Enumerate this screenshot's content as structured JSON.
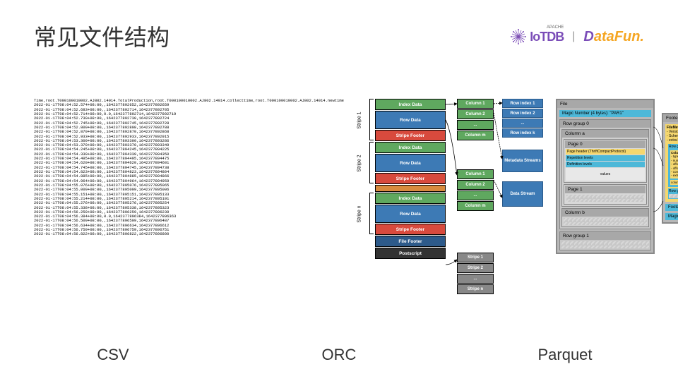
{
  "title": "常见文件结构",
  "logos": {
    "iotdb": "IoTDB",
    "apache": "APACHE",
    "datafun_d": "D",
    "datafun_rest": "ataFun.",
    "iotdb_color": "#7b4db8",
    "datafun_color": "#f5a623"
  },
  "labels": {
    "csv": "CSV",
    "orc": "ORC",
    "parquet": "Parquet"
  },
  "csv": {
    "header": "Time,root.T000100010002.AJ802.14014.TotalProduction,root.T000100010002.AJ802.14014.collecttime,root.T000100010002.AJ802.14014.newtime",
    "rows": [
      "2022-01-17T08:04:52.574+08:00,,1642377892652,1642377892659",
      "2022-01-17T08:04:52.683+08:00,,1642377892714,1642377892705",
      "2022-01-17T08:04:52.714+08:00,0.0,1642377892714,1642377892719",
      "2022-01-17T08:04:52.730+08:00,,1642377892730,1642377892724",
      "2022-01-17T08:04:52.745+08:00,,1642377892745,1642377892728",
      "2022-01-17T08:04:52.800+08:00,,1642377892808,1642377892788",
      "2022-01-17T08:04:52.870+08:00,,1642377892870,1642377892868",
      "2022-01-17T08:04:52.933+08:00,,1642377892933,1642377892915",
      "2022-01-17T08:04:53.300+08:00,,1642377893300,1642377893286",
      "2022-01-17T08:04:53.370+08:00,,1642377893370,1642377893349",
      "2022-01-17T08:04:54.245+08:00,,1642377894245,1642377894225",
      "2022-01-17T08:04:54.339+08:00,,1642377894339,1642377894350",
      "2022-01-17T08:04:54.495+08:00,,1642377894495,1642377894475",
      "2022-01-17T08:04:54.620+08:00,,1642377894620,1642377894601",
      "2022-01-17T08:04:54.745+08:00,,1642377894745,1642377894738",
      "2022-01-17T08:04:54.823+08:00,,1642377894823,1642377894804",
      "2022-01-17T08:04:54.885+08:00,,1642377894885,1642377894866",
      "2022-01-17T08:04:54.964+08:00,,1642377894964,1642377894959",
      "2022-01-17T08:04:55.076+08:00,,1642377895076,1642377895065",
      "2022-01-17T08:04:55.009+08:00,,1642377895009,1642377895006",
      "2022-01-17T08:04:55.151+08:00,,1642377895151,1642377895133",
      "2022-01-17T08:04:55.214+08:00,,1642377895214,1642377895191",
      "2022-01-17T08:04:55.276+08:00,,1642377895276,1642377895254",
      "2022-01-17T08:04:55.338+08:00,,1642377895338,1642377895323",
      "2022-01-17T08:04:56.259+08:00,,1642377896259,1642377896239",
      "2022-01-17T08:04:56.384+08:00,0.0,1642377896384,1642377896363",
      "2022-01-17T08:04:56.509+08:00,,1642377896509,1642377896487",
      "2022-01-17T08:04:56.634+08:00,,1642377896634,1642377896612",
      "2022-01-17T08:04:56.759+08:00,,1642377896759,1642377896751",
      "2022-01-17T08:04:56.822+08:00,,1642377896822,1642377896800"
    ]
  },
  "orc": {
    "colors": {
      "index": "#5fa85f",
      "row": "#3d7ab5",
      "footer": "#d84a3d",
      "file_footer": "#2d5a8a",
      "postscript": "#333333",
      "column": "#5fa85f",
      "stripe_s": "#888888",
      "omit": "#d88a3d"
    },
    "stripes": [
      {
        "label": "Stripe 1",
        "blocks": [
          "Index Data",
          "Row Data",
          "Stripe Footer"
        ]
      },
      {
        "label": "Stripe 2",
        "blocks": [
          "Index Data",
          "Row Data",
          "Stripe Footer"
        ]
      },
      {
        "label": "Stripe n",
        "blocks": [
          "Index Data",
          "Row Data",
          "Stripe Footer"
        ]
      }
    ],
    "tail": [
      "File Footer",
      "Postscript"
    ],
    "columns_top": [
      "Column 1",
      "Column 2",
      "...",
      "Column m"
    ],
    "columns_mid": [
      "Column 1",
      "Column 2",
      "...",
      "Column m"
    ],
    "stripes_right": [
      "Stripe 1",
      "Stripe 2",
      "...",
      "Stripe n"
    ],
    "row_index": [
      "Row index 1",
      "Row index 2",
      "...",
      "Row index k"
    ],
    "meta_stream": "Metadata Streams",
    "data_stream": "Data Stream"
  },
  "parquet": {
    "colors": {
      "border": "#888888",
      "bg": "#b8b8b8",
      "cyan": "#4db8d8",
      "yellow": "#f5d76e"
    },
    "file_label": "File",
    "magic": "Magic Number (4 bytes): \"PAR1\"",
    "rowgroup0": "Row group 0",
    "column_a": "Column a",
    "page0": "Page 0",
    "page_header": "Page header (ThriftCompactProtocol)",
    "rep_levels": "Repetition levels",
    "def_levels": "Definition levels",
    "values": "values",
    "page1": "Page 1",
    "column_b": "Column b",
    "rowgroup1": "Row group 1",
    "footer_label": "Footer",
    "file_meta": "FileMetaData (ThriftCompactProtocol)",
    "meta_items": "- Version (of the format)\n- Schema\n- extra key/value pairs",
    "rg0_meta": "Row group 0 meta data:",
    "col_a_meta": "Column a meta data:",
    "col_meta_items": "- type / path / encodings / codec\n- num values\n- offset of first data page\n- offset of first index page\n- compressed/uncompressed size\n- extra key/value pairs",
    "col_b_meta": "column \"b\" meta data",
    "rg1_meta": "Row group 1 meta data:",
    "footer_len": "Footer length (4 bytes)",
    "magic2": "Magic Number (4 bytes): \"PAR1\""
  }
}
